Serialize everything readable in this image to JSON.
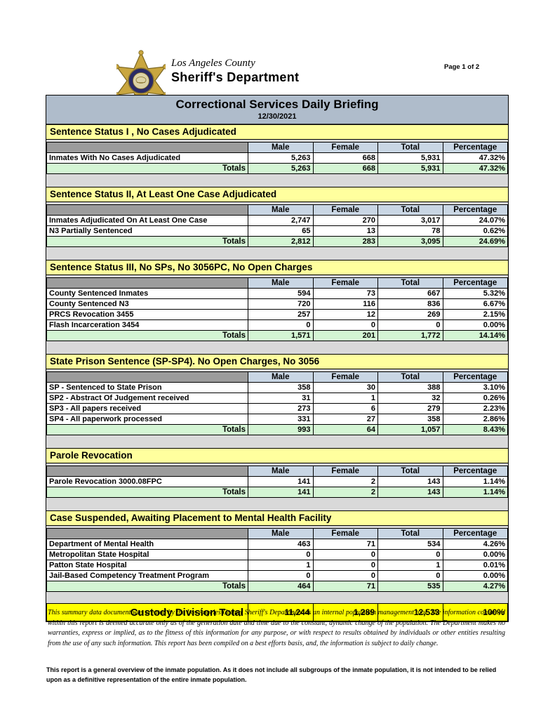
{
  "header": {
    "logo_icon": "sheriff-star-badge",
    "agency_line1": "Los Angeles County",
    "agency_line2": "Sheriff's Department",
    "page_indicator": "Page 1 of 2"
  },
  "title": {
    "main": "Correctional Services Daily Briefing",
    "date": "12/30/2021"
  },
  "columns": [
    "Male",
    "Female",
    "Total",
    "Percentage"
  ],
  "totals_label": "Totals",
  "sections": [
    {
      "title": "Sentence Status I , No Cases Adjudicated",
      "rows": [
        {
          "label": "Inmates With No Cases Adjudicated",
          "male": "5,263",
          "female": "668",
          "total": "5,931",
          "pct": "47.32%"
        }
      ],
      "totals": {
        "male": "5,263",
        "female": "668",
        "total": "5,931",
        "pct": "47.32%"
      }
    },
    {
      "title": "Sentence Status II, At Least One Case Adjudicated",
      "rows": [
        {
          "label": "Inmates Adjudicated On At Least One Case",
          "male": "2,747",
          "female": "270",
          "total": "3,017",
          "pct": "24.07%"
        },
        {
          "label": "N3 Partially Sentenced",
          "male": "65",
          "female": "13",
          "total": "78",
          "pct": "0.62%"
        }
      ],
      "totals": {
        "male": "2,812",
        "female": "283",
        "total": "3,095",
        "pct": "24.69%"
      }
    },
    {
      "title": "Sentence Status III, No SPs, No 3056PC, No Open Charges",
      "rows": [
        {
          "label": "County Sentenced Inmates",
          "male": "594",
          "female": "73",
          "total": "667",
          "pct": "5.32%"
        },
        {
          "label": "County Sentenced N3",
          "male": "720",
          "female": "116",
          "total": "836",
          "pct": "6.67%"
        },
        {
          "label": "PRCS Revocation 3455",
          "male": "257",
          "female": "12",
          "total": "269",
          "pct": "2.15%"
        },
        {
          "label": "Flash Incarceration 3454",
          "male": "0",
          "female": "0",
          "total": "0",
          "pct": "0.00%"
        }
      ],
      "totals": {
        "male": "1,571",
        "female": "201",
        "total": "1,772",
        "pct": "14.14%"
      }
    },
    {
      "title": "State Prison Sentence (SP-SP4). No Open Charges, No 3056",
      "rows": [
        {
          "label": "SP - Sentenced to State Prison",
          "male": "358",
          "female": "30",
          "total": "388",
          "pct": "3.10%"
        },
        {
          "label": "SP2 - Abstract Of Judgement received",
          "male": "31",
          "female": "1",
          "total": "32",
          "pct": "0.26%"
        },
        {
          "label": "SP3 - All papers received",
          "male": "273",
          "female": "6",
          "total": "279",
          "pct": "2.23%"
        },
        {
          "label": "SP4 - All paperwork processed",
          "male": "331",
          "female": "27",
          "total": "358",
          "pct": "2.86%"
        }
      ],
      "totals": {
        "male": "993",
        "female": "64",
        "total": "1,057",
        "pct": "8.43%"
      }
    },
    {
      "title": "Parole Revocation",
      "rows": [
        {
          "label": "Parole Revocation 3000.08FPC",
          "male": "141",
          "female": "2",
          "total": "143",
          "pct": "1.14%"
        }
      ],
      "totals": {
        "male": "141",
        "female": "2",
        "total": "143",
        "pct": "1.14%"
      }
    },
    {
      "title": "Case Suspended, Awaiting Placement to Mental Health Facility",
      "rows": [
        {
          "label": "Department of Mental Health",
          "male": "463",
          "female": "71",
          "total": "534",
          "pct": "4.26%"
        },
        {
          "label": "Metropolitan State Hospital",
          "male": "0",
          "female": "0",
          "total": "0",
          "pct": "0.00%"
        },
        {
          "label": "Patton State Hospital",
          "male": "1",
          "female": "0",
          "total": "1",
          "pct": "0.01%"
        },
        {
          "label": "Jail-Based Competency Treatment Program",
          "male": "0",
          "female": "0",
          "total": "0",
          "pct": "0.00%"
        }
      ],
      "totals": {
        "male": "464",
        "female": "71",
        "total": "535",
        "pct": "4.27%"
      }
    }
  ],
  "custody_total": {
    "label": "Custody Division Total",
    "male": "11,244",
    "female": "1,289",
    "total": "12,533",
    "pct": "100%"
  },
  "disclaimer": "This summary data document was created by the Los Angeles County Sheriff's Department as an internal population management tool.  The information contained within this report is deemed accurate only as of the generation date and time due to the constant, dynamic change of the population.  The Department makes no warranties, express or implied, as to the fitness of this information for any purpose, or with respect to results obtained by individuals or other entities resulting from the use of any such information.  This report has been compiled on a best efforts basis, and, the information is subject to daily change.",
  "footnote": "This report is a general overview of the inmate population.  As it does not include all subgroups of the inmate population, it is not intended to be relied upon as a definitive representation of the entire inmate population.",
  "colors": {
    "banner_bg": "#AFBCCB",
    "section_header_bg": "#FFFF9E",
    "column_header_bg": "#C9D6E4",
    "row_label_header_bg": "#9C9C9C",
    "totals_row_bg": "#D4F5D4",
    "custody_row_bg": "#FFFF00",
    "spacer_bg": "#D9D9D9",
    "badge_gold": "#C9A63F",
    "badge_navy": "#2A2A66"
  }
}
